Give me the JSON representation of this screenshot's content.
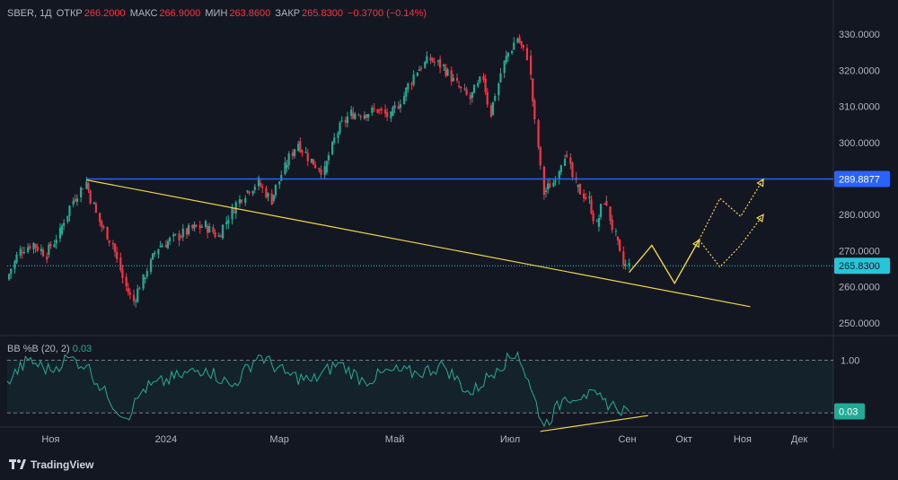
{
  "header": {
    "symbol": "SBER, 1Д",
    "open_label": "ОТКР",
    "open": "266.2000",
    "high_label": "МАКС",
    "high": "266.9000",
    "low_label": "МИН",
    "low": "263.8600",
    "close_label": "ЗАКР",
    "close": "265.8300",
    "change": "−0.3700 (−0.14%)"
  },
  "indicator": {
    "name": "BB %B (20, 2)",
    "value": "0.03"
  },
  "branding": {
    "name": "TradingView"
  },
  "colors": {
    "bull": "#22ab94",
    "bear": "#f23645",
    "hline": "#2962ff",
    "trend": "#f0d44a",
    "bb": "#22ab94",
    "close_tag": "#26c6da"
  },
  "chart_data": [
    {
      "type": "candlestick",
      "symbol": "SBER",
      "timeframe": "1Д",
      "ylim": [
        247.5,
        332.5
      ],
      "y_ticks": [
        "330.0000",
        "320.0000",
        "310.0000",
        "300.0000",
        "290.0000",
        "280.0000",
        "270.0000",
        "260.0000",
        "250.0000"
      ],
      "x_ticks": [
        "Ноя",
        "2024",
        "Мар",
        "Май",
        "Июл",
        "Сен",
        "Окт",
        "Ноя",
        "Дек"
      ],
      "price_series": [
        {
          "d": "2023-10-09",
          "c": 262
        },
        {
          "d": "2023-10-16",
          "c": 270
        },
        {
          "d": "2023-10-23",
          "c": 272
        },
        {
          "d": "2023-10-30",
          "c": 269
        },
        {
          "d": "2023-11-06",
          "c": 275
        },
        {
          "d": "2023-11-13",
          "c": 284
        },
        {
          "d": "2023-11-20",
          "c": 289
        },
        {
          "d": "2023-11-27",
          "c": 278
        },
        {
          "d": "2023-12-04",
          "c": 272
        },
        {
          "d": "2023-12-11",
          "c": 260
        },
        {
          "d": "2023-12-15",
          "c": 256
        },
        {
          "d": "2023-12-20",
          "c": 262
        },
        {
          "d": "2023-12-28",
          "c": 271
        },
        {
          "d": "2024-01-08",
          "c": 274
        },
        {
          "d": "2024-01-15",
          "c": 276
        },
        {
          "d": "2024-01-22",
          "c": 277
        },
        {
          "d": "2024-01-29",
          "c": 274
        },
        {
          "d": "2024-02-05",
          "c": 281
        },
        {
          "d": "2024-02-12",
          "c": 286
        },
        {
          "d": "2024-02-19",
          "c": 289
        },
        {
          "d": "2024-02-26",
          "c": 284
        },
        {
          "d": "2024-03-04",
          "c": 293
        },
        {
          "d": "2024-03-11",
          "c": 300
        },
        {
          "d": "2024-03-18",
          "c": 295
        },
        {
          "d": "2024-03-25",
          "c": 292
        },
        {
          "d": "2024-04-01",
          "c": 303
        },
        {
          "d": "2024-04-08",
          "c": 308
        },
        {
          "d": "2024-04-15",
          "c": 308
        },
        {
          "d": "2024-04-22",
          "c": 309
        },
        {
          "d": "2024-04-29",
          "c": 307
        },
        {
          "d": "2024-05-06",
          "c": 313
        },
        {
          "d": "2024-05-13",
          "c": 320
        },
        {
          "d": "2024-05-20",
          "c": 323
        },
        {
          "d": "2024-05-27",
          "c": 321
        },
        {
          "d": "2024-06-03",
          "c": 316
        },
        {
          "d": "2024-06-10",
          "c": 312
        },
        {
          "d": "2024-06-17",
          "c": 318
        },
        {
          "d": "2024-06-21",
          "c": 308
        },
        {
          "d": "2024-06-28",
          "c": 322
        },
        {
          "d": "2024-07-05",
          "c": 329
        },
        {
          "d": "2024-07-10",
          "c": 324
        },
        {
          "d": "2024-07-12",
          "c": 318
        },
        {
          "d": "2024-07-19",
          "c": 286
        },
        {
          "d": "2024-07-24",
          "c": 289
        },
        {
          "d": "2024-07-30",
          "c": 297
        },
        {
          "d": "2024-08-05",
          "c": 288
        },
        {
          "d": "2024-08-12",
          "c": 284
        },
        {
          "d": "2024-08-16",
          "c": 277
        },
        {
          "d": "2024-08-20",
          "c": 284
        },
        {
          "d": "2024-08-26",
          "c": 274
        },
        {
          "d": "2024-08-30",
          "c": 266
        },
        {
          "d": "2024-09-02",
          "c": 265.83
        }
      ],
      "horizontal_line": {
        "value": 289.8877,
        "label": "289.8877"
      },
      "last_price": {
        "value": 265.83,
        "label": "265.8300"
      },
      "trendline": [
        {
          "d": "2023-11-20",
          "v": 289.6
        },
        {
          "d": "2024-11-05",
          "v": 254.5
        }
      ],
      "projection_solid": [
        {
          "d": "2024-09-02",
          "v": 264
        },
        {
          "d": "2024-09-14",
          "v": 271.5
        },
        {
          "d": "2024-09-26",
          "v": 261
        },
        {
          "d": "2024-10-09",
          "v": 273
        }
      ],
      "projection_dotted_a": [
        {
          "d": "2024-10-09",
          "v": 273
        },
        {
          "d": "2024-10-20",
          "v": 284.5
        },
        {
          "d": "2024-10-31",
          "v": 279.5
        },
        {
          "d": "2024-11-12",
          "v": 289.8
        }
      ],
      "projection_dotted_b": [
        {
          "d": "2024-10-09",
          "v": 273
        },
        {
          "d": "2024-10-20",
          "v": 265.5
        },
        {
          "d": "2024-10-31",
          "v": 271.5
        },
        {
          "d": "2024-11-12",
          "v": 280
        }
      ]
    },
    {
      "type": "line",
      "name": "BB %B (20, 2)",
      "ylim": [
        -0.2,
        1.4
      ],
      "reference_lines": [
        1.0,
        0.0
      ],
      "y_tick_labels": [
        "1.00"
      ],
      "last_value_label": "0.03",
      "x": [
        "2023-10-09",
        "2023-10-20",
        "2023-11-01",
        "2023-11-10",
        "2023-11-20",
        "2023-12-01",
        "2023-12-11",
        "2023-12-20",
        "2024-01-08",
        "2024-01-22",
        "2024-02-05",
        "2024-02-19",
        "2024-03-04",
        "2024-03-18",
        "2024-04-01",
        "2024-04-15",
        "2024-04-29",
        "2024-05-13",
        "2024-05-27",
        "2024-06-10",
        "2024-06-24",
        "2024-07-05",
        "2024-07-12",
        "2024-07-19",
        "2024-07-30",
        "2024-08-09",
        "2024-08-19",
        "2024-08-26",
        "2024-09-02"
      ],
      "values": [
        0.6,
        1.0,
        0.8,
        1.05,
        0.9,
        0.3,
        -0.1,
        0.45,
        0.7,
        0.85,
        0.5,
        1.1,
        0.75,
        0.6,
        0.95,
        0.6,
        0.8,
        0.75,
        0.9,
        0.35,
        0.85,
        1.15,
        0.45,
        -0.25,
        0.3,
        0.35,
        0.25,
        0.1,
        0.03
      ],
      "divergence_line": [
        {
          "d": "2024-07-17",
          "v": -0.35
        },
        {
          "d": "2024-09-12",
          "v": -0.05
        }
      ]
    }
  ]
}
